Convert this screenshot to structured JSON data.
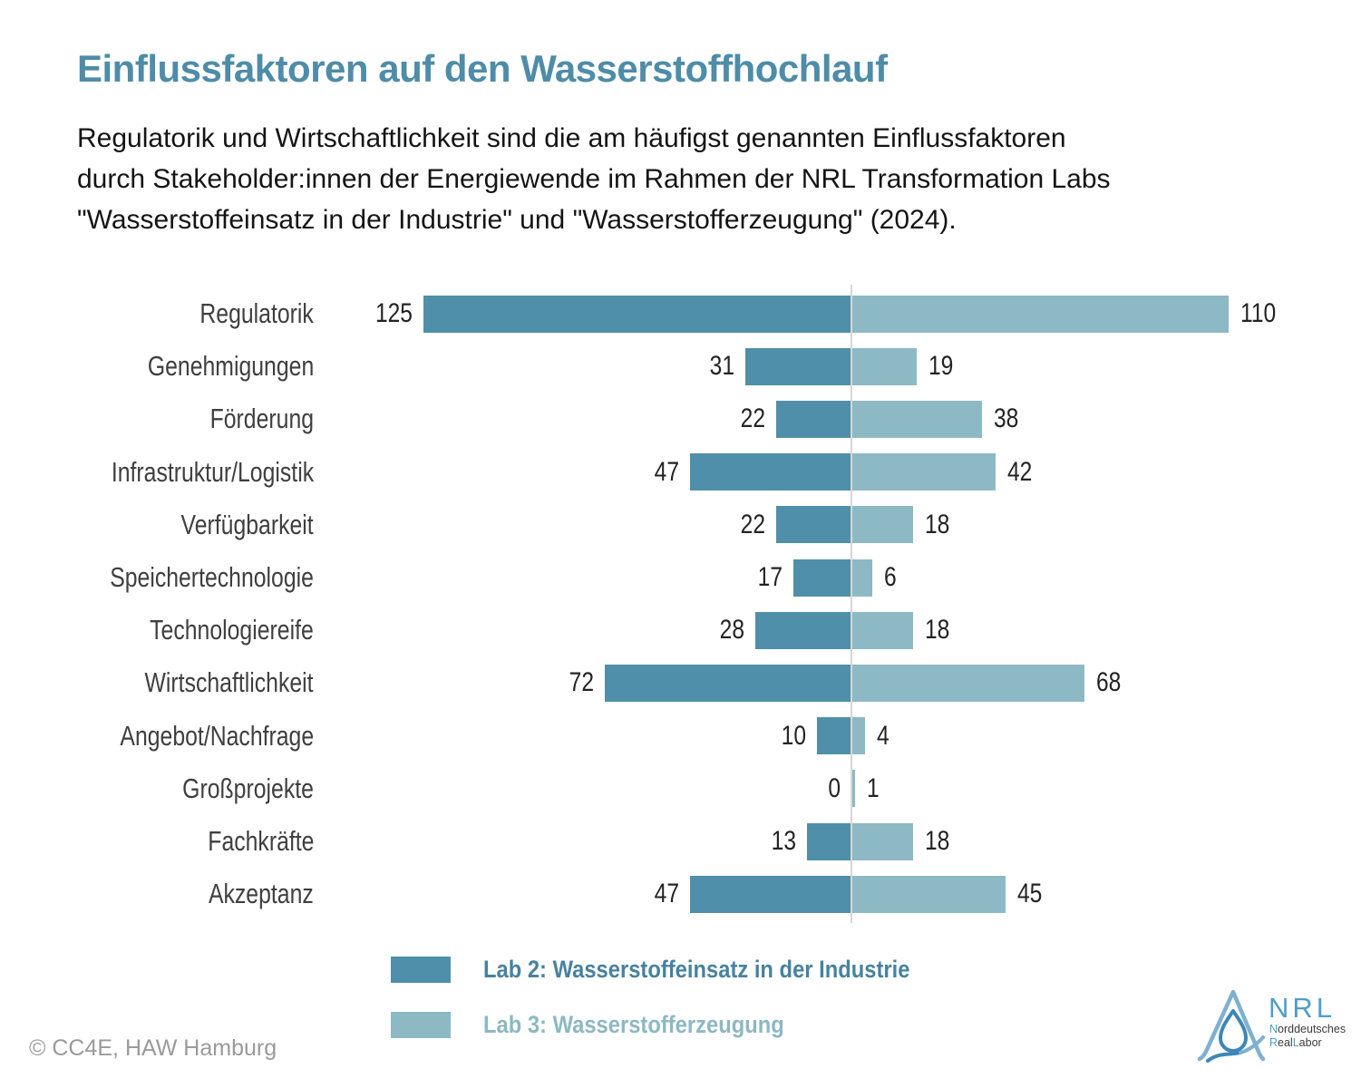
{
  "title": "Einflussfaktoren auf den Wasserstoffhochlauf",
  "subtitle": {
    "lines": [
      "Regulatorik und Wirtschaftlichkeit sind die am häufigst genannten Einflussfaktoren",
      "durch Stakeholder:innen der Energiewende im Rahmen der NRL Transformation Labs",
      "\"Wasserstoffeinsatz in der Industrie\" und \"Wasserstofferzeugung\" (2024)."
    ]
  },
  "chart_data": {
    "type": "bar",
    "variant": "diverging-horizontal",
    "categories": [
      "Regulatorik",
      "Genehmigungen",
      "Förderung",
      "Infrastruktur/Logistik",
      "Verfügbarkeit",
      "Speichertechnologie",
      "Technologiereife",
      "Wirtschaftlichkeit",
      "Angebot/Nachfrage",
      "Großprojekte",
      "Fachkräfte",
      "Akzeptanz"
    ],
    "series": [
      {
        "name": "Lab 2: Wasserstoffeinsatz in der Industrie",
        "side": "left",
        "color": "#4f8fa9",
        "label_color": "#47829f",
        "values": [
          125,
          31,
          22,
          47,
          22,
          17,
          28,
          72,
          10,
          0,
          13,
          47
        ]
      },
      {
        "name": "Lab 3: Wasserstofferzeugung",
        "side": "right",
        "color": "#8db9c4",
        "label_color": "#8cb8c2",
        "values": [
          110,
          19,
          38,
          42,
          18,
          6,
          18,
          68,
          4,
          1,
          18,
          45
        ]
      }
    ],
    "axis": {
      "center_line": true,
      "center_line_color": "#d6d6d6",
      "gridlines": false
    },
    "value_labels": true,
    "legend_position": "bottom"
  },
  "footer": {
    "copyright": "© CC4E, HAW Hamburg"
  },
  "logo": {
    "acronym": "NRL",
    "word1": {
      "accent": "N",
      "rest": "orddeutsches"
    },
    "word2": {
      "accent1": "R",
      "rest1": "eal",
      "accent2": "L",
      "rest2": "abor"
    },
    "colors": {
      "acronym": "#4f9ec9",
      "accent": "#4f9ec9",
      "text": "#3c3c3c",
      "triangle": "#7fb0d0",
      "droplet": "#3c87b7"
    }
  }
}
